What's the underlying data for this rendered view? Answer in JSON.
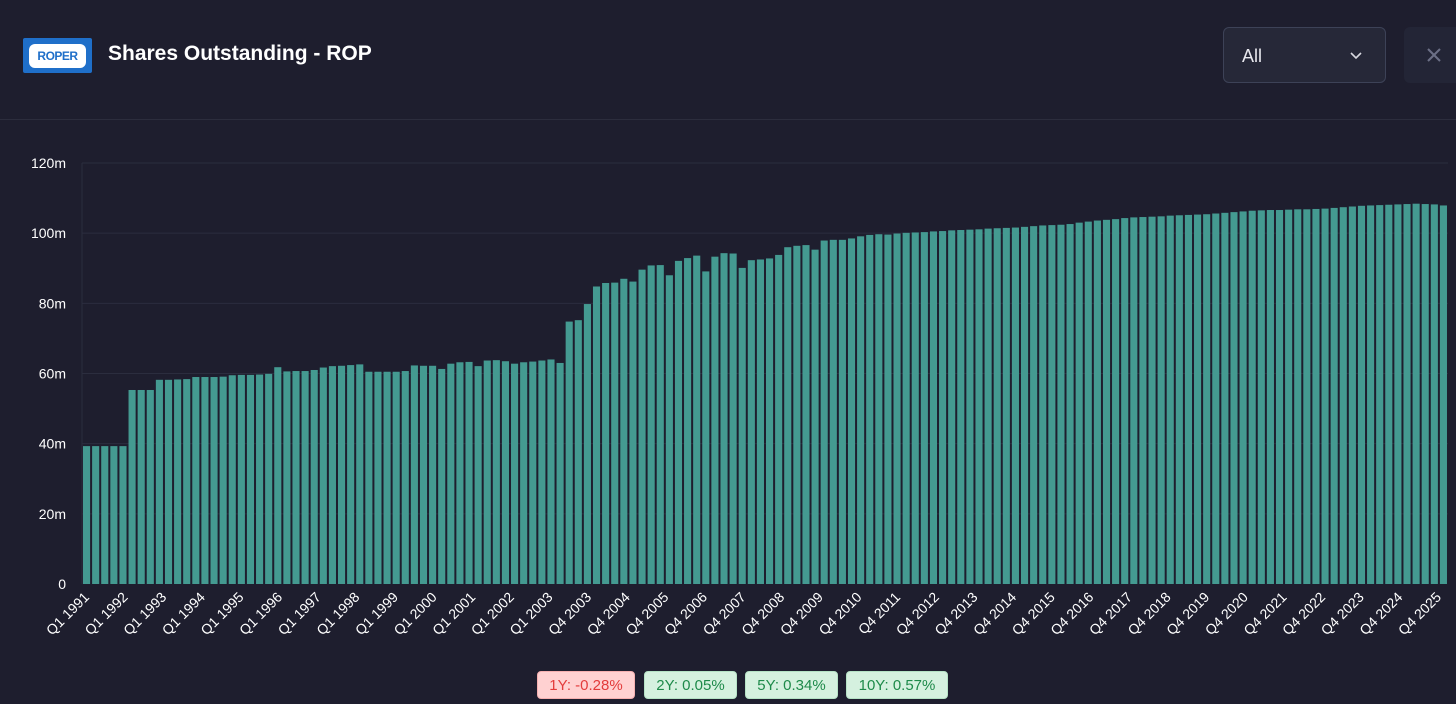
{
  "header": {
    "logo_text": "ROPER",
    "title": "Shares Outstanding - ROP",
    "period_select": "All",
    "close_icon": "close-icon",
    "dropdown_icon": "chevron-down-icon"
  },
  "chart_data": {
    "type": "bar",
    "title": "Shares Outstanding - ROP",
    "xlabel": "",
    "ylabel": "",
    "ylim": [
      0,
      120
    ],
    "unit": "m",
    "y_ticks": [
      "0",
      "20m",
      "40m",
      "60m",
      "80m",
      "100m",
      "120m"
    ],
    "bar_color": "#449a91",
    "grid": true,
    "x_tick_labels": [
      "Q1 1991",
      "Q1 1992",
      "Q1 1993",
      "Q1 1994",
      "Q1 1995",
      "Q1 1996",
      "Q1 1997",
      "Q1 1998",
      "Q1 1999",
      "Q1 2000",
      "Q1 2001",
      "Q1 2002",
      "Q1 2003",
      "Q4 2003",
      "Q4 2004",
      "Q4 2005",
      "Q4 2006",
      "Q4 2007",
      "Q4 2008",
      "Q4 2009",
      "Q4 2010",
      "Q4 2011",
      "Q4 2012",
      "Q4 2013",
      "Q4 2014",
      "Q4 2015",
      "Q4 2016",
      "Q4 2017",
      "Q4 2018",
      "Q4 2019",
      "Q4 2020",
      "Q4 2021",
      "Q4 2022",
      "Q4 2023",
      "Q4 2024",
      "Q4 2025"
    ],
    "values": [
      39.3,
      39.3,
      39.3,
      39.3,
      39.3,
      55.3,
      55.3,
      55.3,
      58.2,
      58.2,
      58.3,
      58.4,
      59.0,
      59.0,
      59.0,
      59.1,
      59.5,
      59.6,
      59.6,
      59.7,
      59.9,
      61.8,
      60.6,
      60.7,
      60.7,
      61.0,
      61.7,
      62.1,
      62.2,
      62.4,
      62.6,
      60.5,
      60.5,
      60.5,
      60.5,
      60.7,
      62.3,
      62.2,
      62.2,
      61.3,
      62.8,
      63.2,
      63.3,
      62.1,
      63.7,
      63.8,
      63.5,
      62.8,
      63.2,
      63.4,
      63.7,
      64.0,
      63.0,
      74.8,
      75.2,
      79.8,
      84.8,
      85.8,
      85.9,
      87.0,
      86.2,
      89.6,
      90.8,
      90.9,
      88.0,
      92.1,
      92.9,
      93.6,
      89.1,
      93.3,
      94.3,
      94.2,
      90.1,
      92.3,
      92.5,
      92.8,
      93.8,
      96.0,
      96.4,
      96.6,
      95.3,
      97.9,
      98.1,
      98.1,
      98.5,
      99.1,
      99.5,
      99.7,
      99.6,
      99.9,
      100.1,
      100.2,
      100.3,
      100.5,
      100.6,
      100.8,
      100.9,
      101.0,
      101.1,
      101.3,
      101.4,
      101.5,
      101.6,
      101.8,
      102.0,
      102.2,
      102.3,
      102.4,
      102.6,
      103.0,
      103.3,
      103.6,
      103.8,
      104.0,
      104.3,
      104.5,
      104.6,
      104.7,
      104.8,
      105.0,
      105.1,
      105.2,
      105.3,
      105.4,
      105.6,
      105.8,
      106.0,
      106.2,
      106.4,
      106.5,
      106.6,
      106.6,
      106.7,
      106.8,
      106.8,
      106.9,
      107.0,
      107.2,
      107.4,
      107.6,
      107.8,
      107.9,
      108.0,
      108.1,
      108.2,
      108.3,
      108.4,
      108.3,
      108.2,
      107.9
    ]
  },
  "growth": [
    {
      "label": "1Y: -0.28%",
      "tone": "neg"
    },
    {
      "label": "2Y: 0.05%",
      "tone": "pos"
    },
    {
      "label": "5Y: 0.34%",
      "tone": "pos"
    },
    {
      "label": "10Y: 0.57%",
      "tone": "pos"
    }
  ]
}
